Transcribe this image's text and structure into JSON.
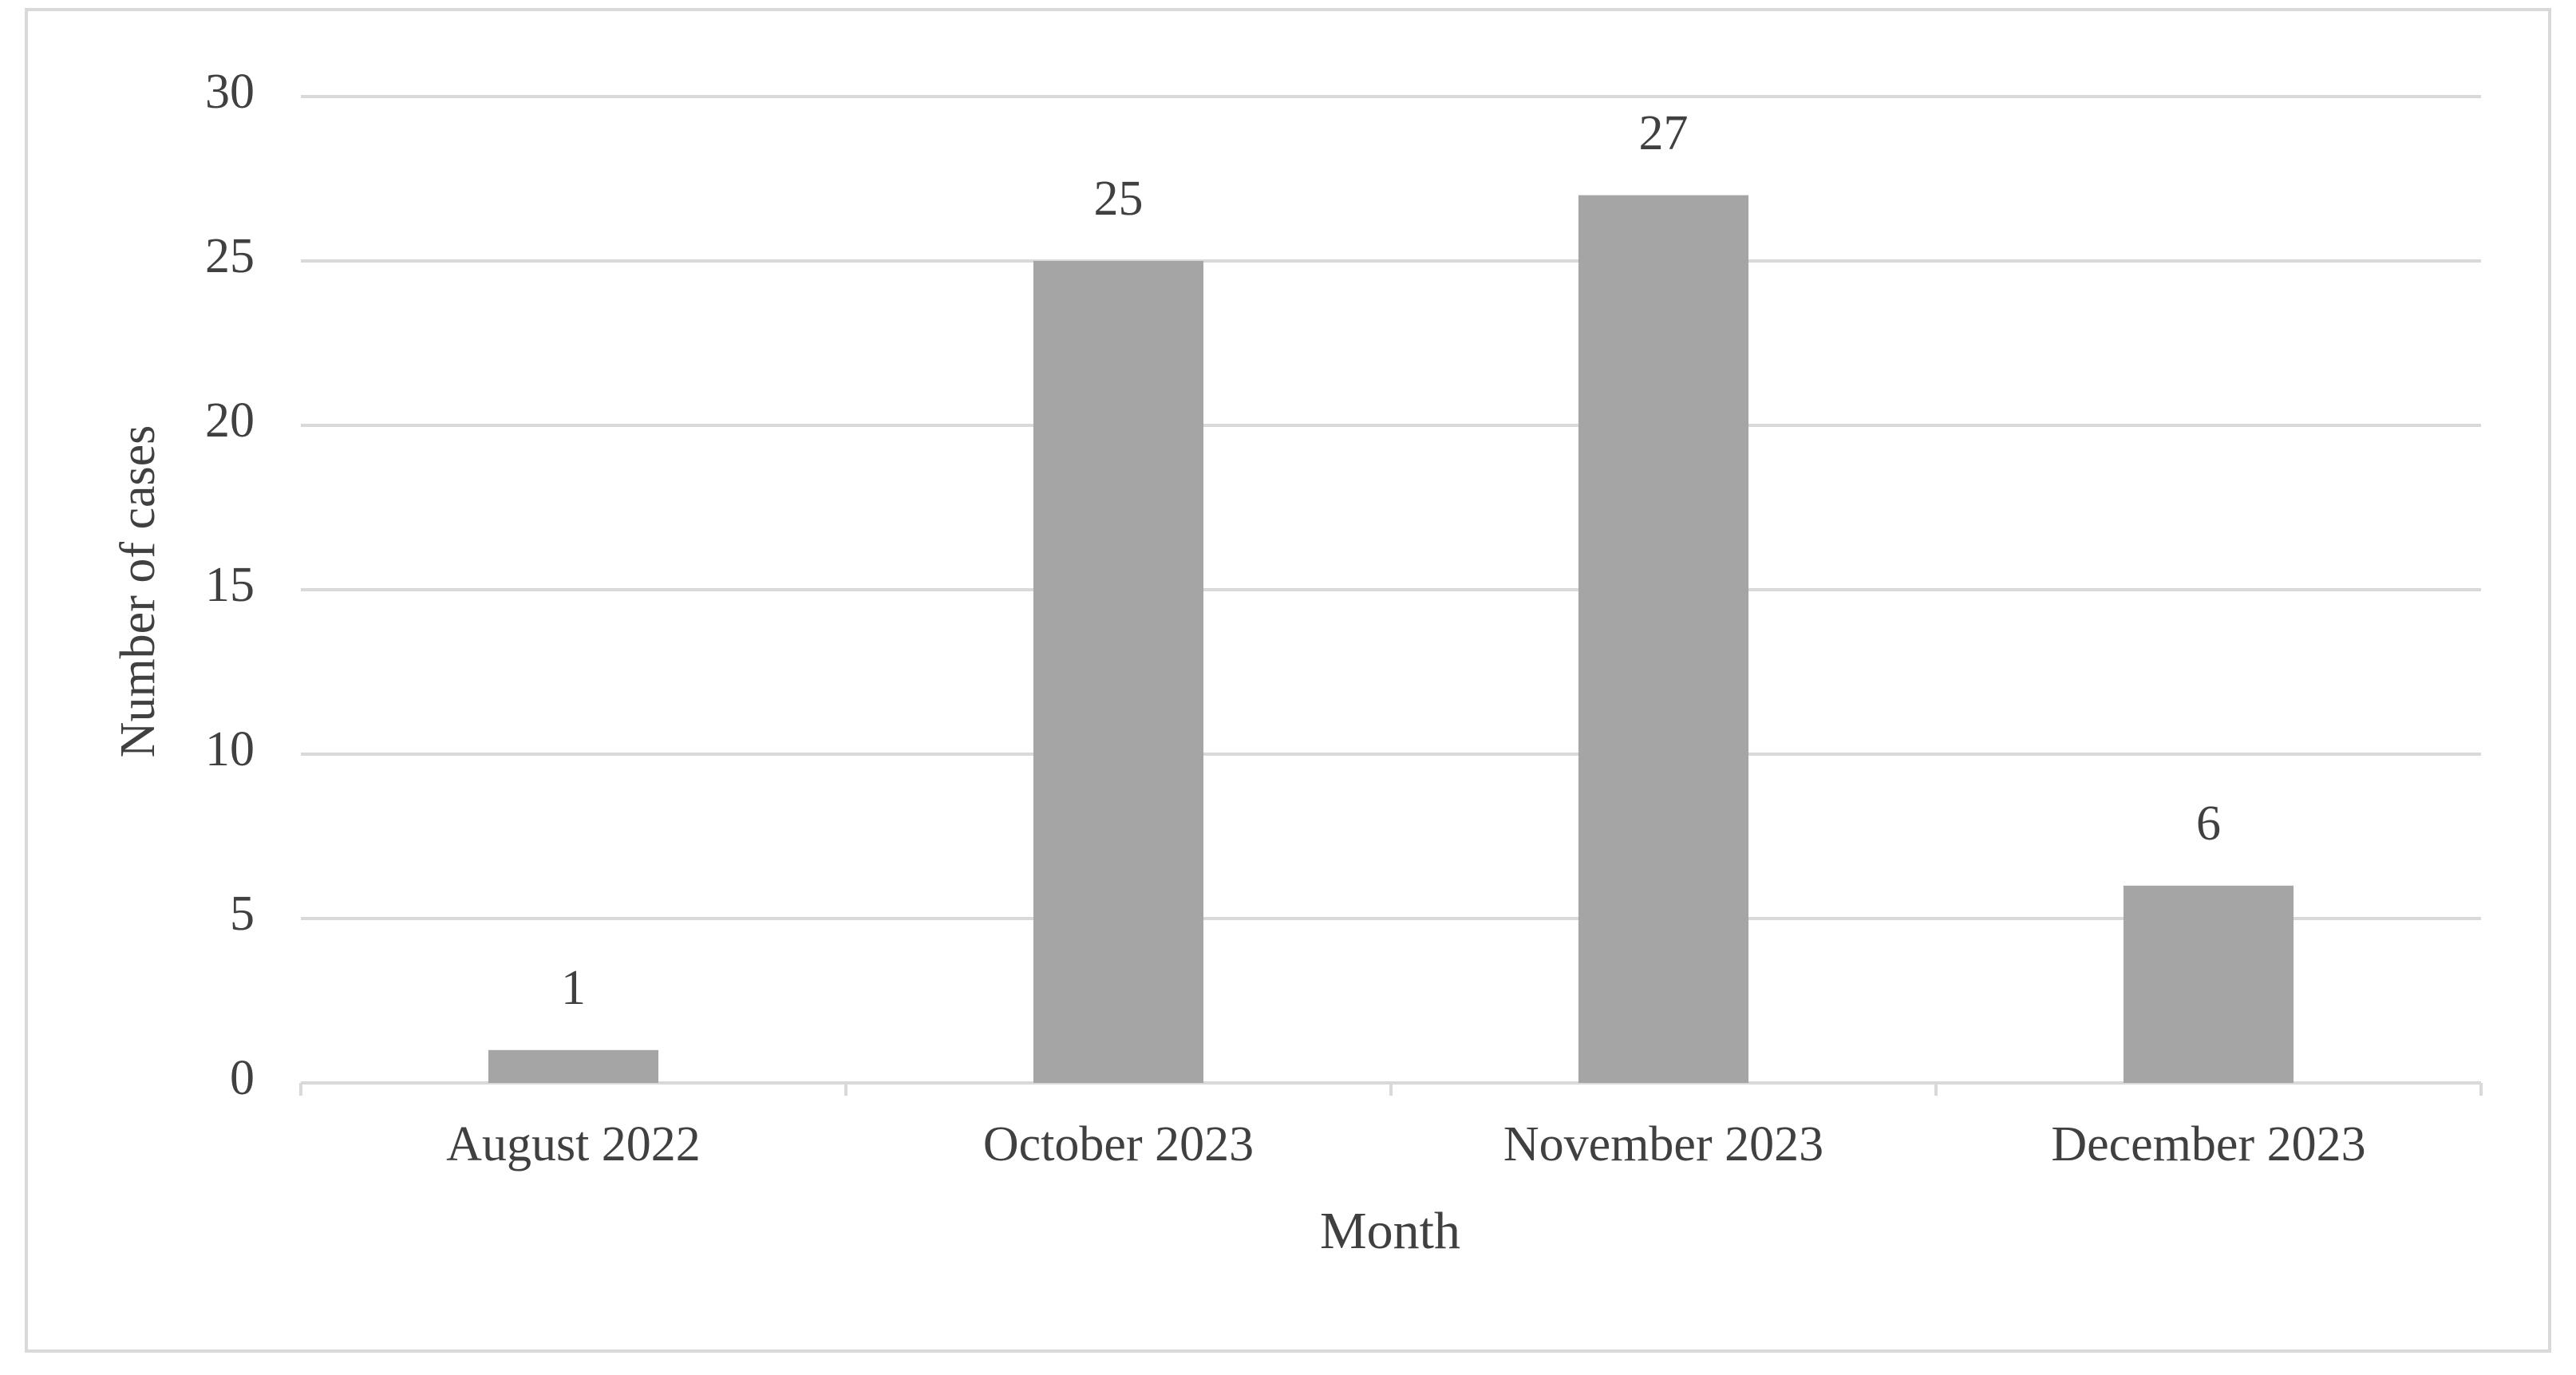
{
  "chart_data": {
    "type": "bar",
    "x_label": "Month",
    "y_label": "Number of cases",
    "categories": [
      "August 2022",
      "October 2023",
      "November 2023",
      "December 2023"
    ],
    "values": [
      1,
      25,
      27,
      6
    ],
    "color": "#a5a5a5",
    "ylim": [
      0,
      30
    ],
    "yticks": [
      0,
      5,
      10,
      15,
      20,
      25,
      30
    ],
    "grid": true,
    "data_labels": true
  }
}
